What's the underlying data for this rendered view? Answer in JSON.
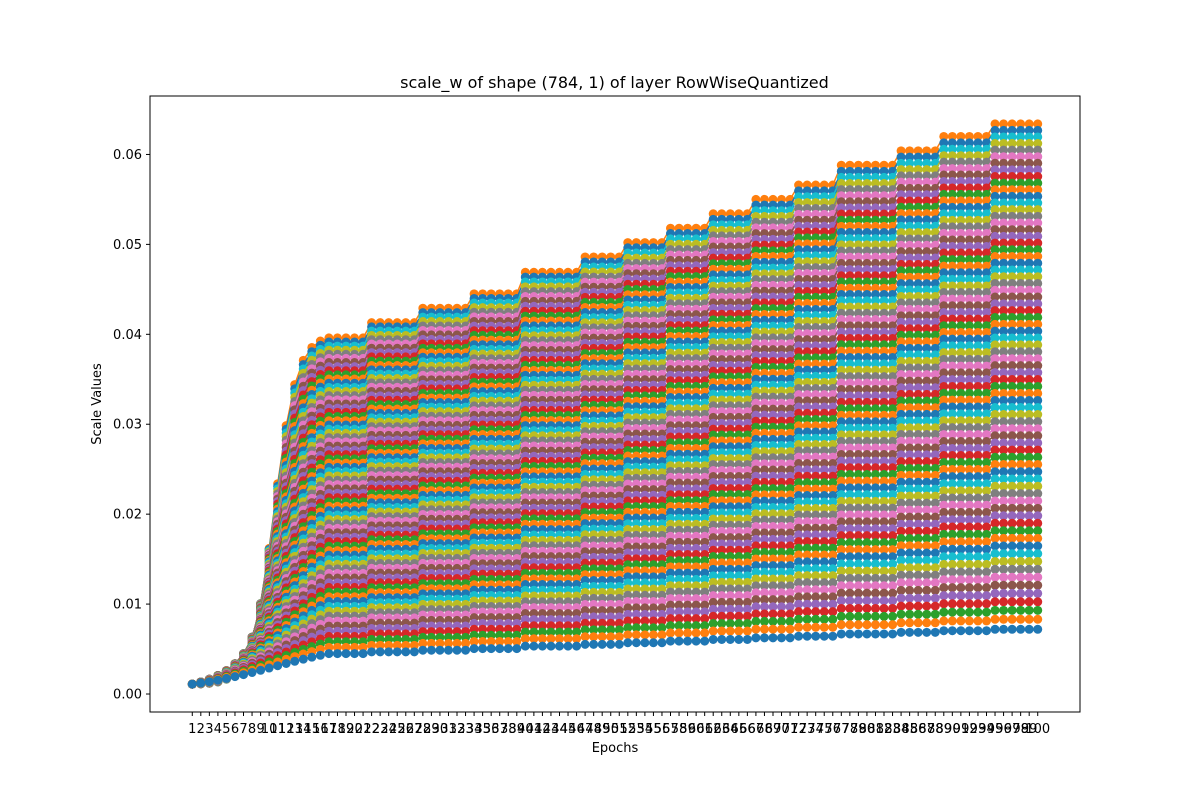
{
  "chart_data": {
    "type": "line",
    "title": "scale_w of shape (784, 1) of layer RowWiseQuantized",
    "xlabel": "Epochs",
    "ylabel": "Scale Values",
    "x": [
      1,
      2,
      3,
      4,
      5,
      6,
      7,
      8,
      9,
      10,
      11,
      12,
      13,
      14,
      15,
      16,
      17,
      18,
      19,
      20,
      21,
      22,
      23,
      24,
      25,
      26,
      27,
      28,
      29,
      30,
      31,
      32,
      33,
      34,
      35,
      36,
      37,
      38,
      39,
      40,
      41,
      42,
      43,
      44,
      45,
      46,
      47,
      48,
      49,
      50,
      51,
      52,
      53,
      54,
      55,
      56,
      57,
      58,
      59,
      60,
      61,
      62,
      63,
      64,
      65,
      66,
      67,
      68,
      69,
      70,
      71,
      72,
      73,
      74,
      75,
      76,
      77,
      78,
      79,
      80,
      81,
      82,
      83,
      84,
      85,
      86,
      87,
      88,
      89,
      90,
      91,
      92,
      93,
      94,
      95,
      96,
      97,
      98,
      99,
      100
    ],
    "xlim": [
      -3.95,
      104.95
    ],
    "ylim": [
      -0.002,
      0.0665
    ],
    "yticks": [
      "0.00",
      "0.01",
      "0.02",
      "0.03",
      "0.04",
      "0.05",
      "0.06"
    ],
    "grid": false,
    "legend": "none",
    "marker": "circle",
    "series_count_shown": 784,
    "series_count_drawn": 72,
    "series_final_range": [
      0.0072,
      0.0634
    ],
    "colors": [
      "#1f77b4",
      "#ff7f0e",
      "#2ca02c",
      "#d62728",
      "#9467bd",
      "#8c564b",
      "#e377c2",
      "#7f7f7f",
      "#bcbd22",
      "#17becf"
    ],
    "top_series_steps": [
      {
        "x_start": 1,
        "value": 0.0011
      },
      {
        "x_start": 18,
        "value": 0.0396
      },
      {
        "x_start": 22,
        "value": 0.0413
      },
      {
        "x_start": 28,
        "value": 0.0429
      },
      {
        "x_start": 34,
        "value": 0.0445
      },
      {
        "x_start": 40,
        "value": 0.0469
      },
      {
        "x_start": 47,
        "value": 0.0486
      },
      {
        "x_start": 52,
        "value": 0.0502
      },
      {
        "x_start": 57,
        "value": 0.0518
      },
      {
        "x_start": 62,
        "value": 0.0534
      },
      {
        "x_start": 67,
        "value": 0.055
      },
      {
        "x_start": 72,
        "value": 0.0566
      },
      {
        "x_start": 77,
        "value": 0.0588
      },
      {
        "x_start": 84,
        "value": 0.0604
      },
      {
        "x_start": 89,
        "value": 0.062
      },
      {
        "x_start": 95,
        "value": 0.0634
      }
    ]
  }
}
